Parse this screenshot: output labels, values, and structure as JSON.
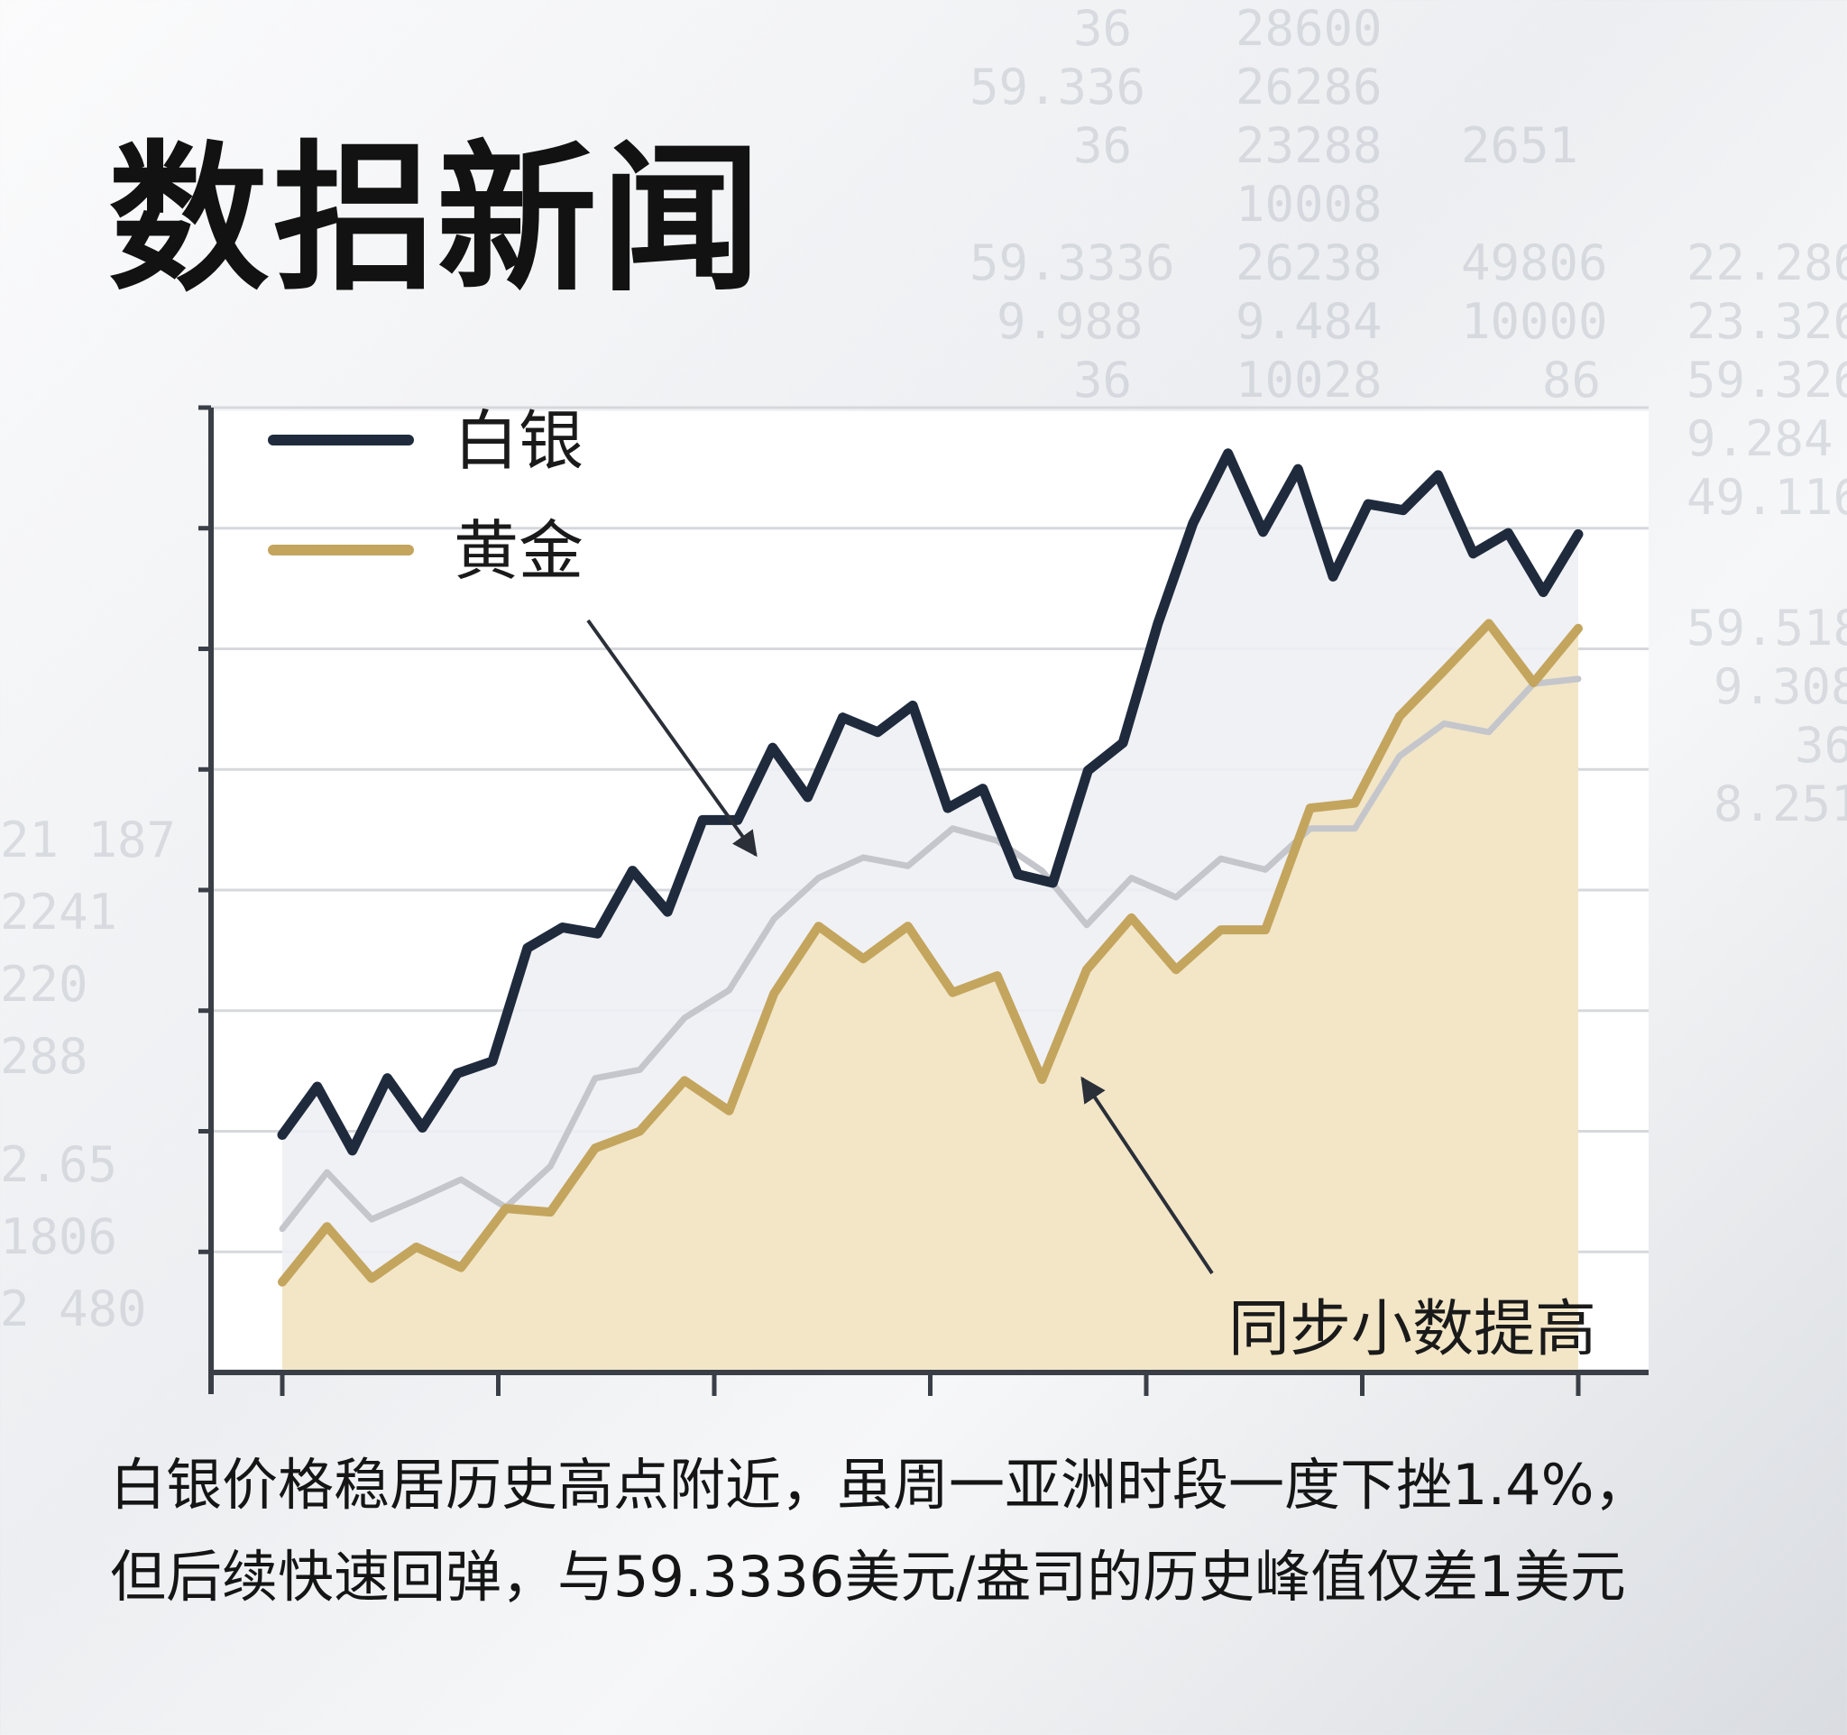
{
  "headline": "数捛新闻",
  "background_numbers": [
    "36",
    "28600",
    "59.336",
    "26286",
    "36",
    "23288",
    "2651",
    "10008",
    "59.3336",
    "26238",
    "49806",
    "22.286",
    "9.988",
    "9.484",
    "10000",
    "23.326",
    "36",
    "10028",
    "86",
    "59.326",
    "9.284",
    "49.116",
    "59.518",
    "9.308",
    "36",
    "8.251",
    "21 187",
    "2241",
    "220",
    "288",
    "2.65",
    "1806",
    "2 480"
  ],
  "chart_data": {
    "type": "line",
    "title": "",
    "xlabel": "",
    "ylabel": "",
    "x_ticks": 7,
    "y_gridlines": 8,
    "legend": {
      "position": "top-left"
    },
    "series": [
      {
        "name": "白银",
        "color": "#1f2b3d",
        "values": [
          1.97,
          2.37,
          1.84,
          2.44,
          2.03,
          2.48,
          2.58,
          3.52,
          3.69,
          3.64,
          4.16,
          3.82,
          4.58,
          4.58,
          5.18,
          4.77,
          5.43,
          5.31,
          5.53,
          4.68,
          4.84,
          4.13,
          4.06,
          4.99,
          5.22,
          6.21,
          7.04,
          7.62,
          6.97,
          7.49,
          6.6,
          7.2,
          7.15,
          7.44,
          6.79,
          6.96,
          6.47,
          6.95
        ]
      },
      {
        "name": "",
        "color": "#c4c6cb",
        "values": [
          1.19,
          1.66,
          1.27,
          1.43,
          1.6,
          1.37,
          1.71,
          2.44,
          2.51,
          2.94,
          3.17,
          3.76,
          4.1,
          4.27,
          4.2,
          4.51,
          4.41,
          4.16,
          3.71,
          4.1,
          3.94,
          4.26,
          4.17,
          4.51,
          4.51,
          5.11,
          5.38,
          5.31,
          5.71,
          5.75
        ]
      },
      {
        "name": "黄金",
        "color": "#c4a55e",
        "values": [
          0.75,
          1.21,
          0.78,
          1.04,
          0.87,
          1.36,
          1.33,
          1.86,
          2.0,
          2.42,
          2.17,
          3.14,
          3.7,
          3.43,
          3.7,
          3.15,
          3.29,
          2.43,
          3.34,
          3.77,
          3.34,
          3.67,
          3.67,
          4.68,
          4.72,
          5.44,
          5.82,
          6.21,
          5.72,
          6.17
        ]
      }
    ],
    "annotations": [
      {
        "text": "同步小数提高",
        "points_to": "黄金"
      }
    ]
  },
  "caption": {
    "line1": "白银价格稳居历史高点附近，虽周一亚洲时段一度下挫1.4%，",
    "line2": "但后续快速回弹，与59.3336美元/盎司的历史峰值仅差1美元"
  }
}
